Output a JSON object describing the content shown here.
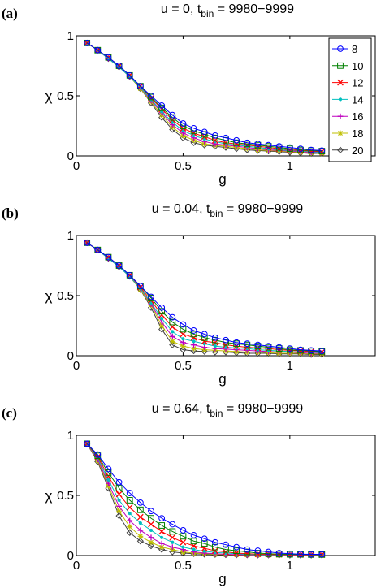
{
  "chart_data": [
    {
      "type": "line",
      "panel_label": "(a)",
      "title": {
        "main": "u = 0, t",
        "sub": "bin",
        "tail": " = 9980−9999"
      },
      "xlabel": "g",
      "ylabel": "χ",
      "xlim": [
        0,
        1.4
      ],
      "ylim": [
        0,
        1
      ],
      "xticks": [
        {
          "v": 0,
          "label": "0"
        },
        {
          "v": 0.5,
          "label": "0.5"
        },
        {
          "v": 1,
          "label": "1"
        }
      ],
      "yticks": [
        {
          "v": 0,
          "label": "0"
        },
        {
          "v": 0.5,
          "label": "0.5"
        },
        {
          "v": 1,
          "label": "1"
        }
      ],
      "grid": false,
      "legend": "top-right",
      "x": [
        0.05,
        0.1,
        0.15,
        0.2,
        0.25,
        0.3,
        0.35,
        0.4,
        0.45,
        0.5,
        0.55,
        0.6,
        0.65,
        0.7,
        0.75,
        0.8,
        0.85,
        0.9,
        0.95,
        1.0,
        1.05,
        1.1,
        1.15
      ],
      "series": [
        {
          "name": "8",
          "color": "#0000ff",
          "marker": "circle",
          "values": [
            0.94,
            0.88,
            0.82,
            0.75,
            0.67,
            0.58,
            0.5,
            0.42,
            0.34,
            0.27,
            0.23,
            0.2,
            0.17,
            0.15,
            0.13,
            0.11,
            0.1,
            0.09,
            0.08,
            0.07,
            0.06,
            0.05,
            0.045
          ]
        },
        {
          "name": "10",
          "color": "#008000",
          "marker": "square",
          "values": [
            0.94,
            0.88,
            0.82,
            0.75,
            0.67,
            0.58,
            0.49,
            0.4,
            0.32,
            0.25,
            0.21,
            0.18,
            0.15,
            0.13,
            0.11,
            0.1,
            0.09,
            0.08,
            0.07,
            0.06,
            0.05,
            0.045,
            0.04
          ]
        },
        {
          "name": "12",
          "color": "#ff0000",
          "marker": "x",
          "values": [
            0.94,
            0.88,
            0.82,
            0.75,
            0.67,
            0.58,
            0.48,
            0.39,
            0.3,
            0.23,
            0.19,
            0.16,
            0.13,
            0.11,
            0.1,
            0.09,
            0.08,
            0.07,
            0.06,
            0.05,
            0.045,
            0.04,
            0.035
          ]
        },
        {
          "name": "14",
          "color": "#00bfbf",
          "marker": "point",
          "values": [
            0.94,
            0.88,
            0.81,
            0.74,
            0.66,
            0.57,
            0.47,
            0.37,
            0.28,
            0.21,
            0.17,
            0.14,
            0.12,
            0.1,
            0.09,
            0.08,
            0.07,
            0.06,
            0.05,
            0.045,
            0.04,
            0.035,
            0.03
          ]
        },
        {
          "name": "16",
          "color": "#bf00bf",
          "marker": "plus",
          "values": [
            0.94,
            0.88,
            0.81,
            0.74,
            0.66,
            0.57,
            0.46,
            0.36,
            0.26,
            0.19,
            0.15,
            0.12,
            0.1,
            0.09,
            0.08,
            0.07,
            0.06,
            0.05,
            0.045,
            0.04,
            0.035,
            0.03,
            0.025
          ]
        },
        {
          "name": "18",
          "color": "#bfbf00",
          "marker": "star",
          "values": [
            0.94,
            0.88,
            0.81,
            0.74,
            0.66,
            0.56,
            0.45,
            0.34,
            0.24,
            0.17,
            0.13,
            0.1,
            0.09,
            0.08,
            0.07,
            0.06,
            0.05,
            0.045,
            0.04,
            0.035,
            0.03,
            0.025,
            0.02
          ]
        },
        {
          "name": "20",
          "color": "#404040",
          "marker": "diamond",
          "values": [
            0.94,
            0.88,
            0.81,
            0.74,
            0.66,
            0.56,
            0.44,
            0.32,
            0.22,
            0.15,
            0.11,
            0.09,
            0.08,
            0.07,
            0.06,
            0.05,
            0.045,
            0.04,
            0.035,
            0.03,
            0.025,
            0.02,
            0.02
          ]
        }
      ]
    },
    {
      "type": "line",
      "panel_label": "(b)",
      "title": {
        "main": "u = 0.04, t",
        "sub": "bin",
        "tail": " = 9980−9999"
      },
      "xlabel": "g",
      "ylabel": "χ",
      "xlim": [
        0,
        1.4
      ],
      "ylim": [
        0,
        1
      ],
      "xticks": [
        {
          "v": 0,
          "label": "0"
        },
        {
          "v": 0.5,
          "label": "0.5"
        },
        {
          "v": 1,
          "label": "1"
        }
      ],
      "yticks": [
        {
          "v": 0,
          "label": "0"
        },
        {
          "v": 0.5,
          "label": "0.5"
        },
        {
          "v": 1,
          "label": "1"
        }
      ],
      "grid": false,
      "x": [
        0.05,
        0.1,
        0.15,
        0.2,
        0.25,
        0.3,
        0.35,
        0.4,
        0.45,
        0.5,
        0.55,
        0.6,
        0.65,
        0.7,
        0.75,
        0.8,
        0.85,
        0.9,
        0.95,
        1.0,
        1.05,
        1.1,
        1.15
      ],
      "series": [
        {
          "name": "8",
          "color": "#0000ff",
          "marker": "circle",
          "values": [
            0.94,
            0.88,
            0.82,
            0.75,
            0.67,
            0.58,
            0.49,
            0.4,
            0.32,
            0.26,
            0.21,
            0.18,
            0.15,
            0.13,
            0.11,
            0.1,
            0.09,
            0.08,
            0.07,
            0.06,
            0.05,
            0.045,
            0.04
          ]
        },
        {
          "name": "10",
          "color": "#008000",
          "marker": "square",
          "values": [
            0.94,
            0.88,
            0.82,
            0.75,
            0.67,
            0.58,
            0.48,
            0.37,
            0.28,
            0.22,
            0.18,
            0.15,
            0.13,
            0.11,
            0.1,
            0.09,
            0.08,
            0.07,
            0.06,
            0.05,
            0.045,
            0.04,
            0.035
          ]
        },
        {
          "name": "12",
          "color": "#ff0000",
          "marker": "x",
          "values": [
            0.94,
            0.88,
            0.82,
            0.75,
            0.67,
            0.57,
            0.46,
            0.34,
            0.24,
            0.18,
            0.15,
            0.12,
            0.11,
            0.09,
            0.08,
            0.07,
            0.065,
            0.06,
            0.05,
            0.045,
            0.04,
            0.035,
            0.03
          ]
        },
        {
          "name": "14",
          "color": "#00bfbf",
          "marker": "point",
          "values": [
            0.94,
            0.88,
            0.81,
            0.74,
            0.66,
            0.56,
            0.44,
            0.31,
            0.2,
            0.14,
            0.12,
            0.1,
            0.08,
            0.07,
            0.065,
            0.06,
            0.05,
            0.045,
            0.04,
            0.035,
            0.03,
            0.03,
            0.025
          ]
        },
        {
          "name": "16",
          "color": "#bf00bf",
          "marker": "plus",
          "values": [
            0.94,
            0.88,
            0.81,
            0.74,
            0.66,
            0.56,
            0.43,
            0.28,
            0.16,
            0.11,
            0.09,
            0.07,
            0.06,
            0.055,
            0.05,
            0.045,
            0.04,
            0.035,
            0.03,
            0.03,
            0.025,
            0.02,
            0.02
          ]
        },
        {
          "name": "18",
          "color": "#bfbf00",
          "marker": "star",
          "values": [
            0.94,
            0.88,
            0.81,
            0.74,
            0.66,
            0.55,
            0.42,
            0.25,
            0.12,
            0.08,
            0.06,
            0.05,
            0.045,
            0.04,
            0.035,
            0.03,
            0.03,
            0.025,
            0.02,
            0.02,
            0.02,
            0.015,
            0.015
          ]
        },
        {
          "name": "20",
          "color": "#404040",
          "marker": "diamond",
          "values": [
            0.94,
            0.88,
            0.81,
            0.74,
            0.66,
            0.55,
            0.4,
            0.22,
            0.09,
            0.05,
            0.04,
            0.035,
            0.03,
            0.03,
            0.025,
            0.02,
            0.02,
            0.02,
            0.015,
            0.015,
            0.015,
            0.01,
            0.01
          ]
        }
      ]
    },
    {
      "type": "line",
      "panel_label": "(c)",
      "title": {
        "main": "u = 0.64, t",
        "sub": "bin",
        "tail": " = 9980−9999"
      },
      "xlabel": "g",
      "ylabel": "χ",
      "xlim": [
        0,
        1.4
      ],
      "ylim": [
        0,
        1
      ],
      "xticks": [
        {
          "v": 0,
          "label": "0"
        },
        {
          "v": 0.5,
          "label": "0.5"
        },
        {
          "v": 1,
          "label": "1"
        }
      ],
      "yticks": [
        {
          "v": 0,
          "label": "0"
        },
        {
          "v": 0.5,
          "label": "0.5"
        },
        {
          "v": 1,
          "label": "1"
        }
      ],
      "grid": false,
      "x": [
        0.05,
        0.1,
        0.15,
        0.2,
        0.25,
        0.3,
        0.35,
        0.4,
        0.45,
        0.5,
        0.55,
        0.6,
        0.65,
        0.7,
        0.75,
        0.8,
        0.85,
        0.9,
        0.95,
        1.0,
        1.05,
        1.1,
        1.15
      ],
      "series": [
        {
          "name": "8",
          "color": "#0000ff",
          "marker": "circle",
          "values": [
            0.93,
            0.84,
            0.72,
            0.61,
            0.52,
            0.44,
            0.37,
            0.31,
            0.26,
            0.21,
            0.17,
            0.14,
            0.11,
            0.09,
            0.07,
            0.05,
            0.04,
            0.03,
            0.02,
            0.015,
            0.012,
            0.01,
            0.01
          ]
        },
        {
          "name": "10",
          "color": "#008000",
          "marker": "square",
          "values": [
            0.93,
            0.83,
            0.69,
            0.56,
            0.46,
            0.38,
            0.31,
            0.25,
            0.2,
            0.16,
            0.12,
            0.1,
            0.07,
            0.05,
            0.04,
            0.03,
            0.02,
            0.015,
            0.012,
            0.01,
            0.01,
            0.008,
            0.008
          ]
        },
        {
          "name": "12",
          "color": "#ff0000",
          "marker": "x",
          "values": [
            0.93,
            0.82,
            0.66,
            0.51,
            0.4,
            0.32,
            0.26,
            0.2,
            0.15,
            0.11,
            0.08,
            0.06,
            0.04,
            0.03,
            0.02,
            0.015,
            0.012,
            0.01,
            0.008,
            0.008,
            0.006,
            0.006,
            0.006
          ]
        },
        {
          "name": "14",
          "color": "#00bfbf",
          "marker": "point",
          "values": [
            0.93,
            0.81,
            0.63,
            0.46,
            0.35,
            0.27,
            0.21,
            0.15,
            0.11,
            0.07,
            0.05,
            0.035,
            0.025,
            0.02,
            0.015,
            0.01,
            0.008,
            0.008,
            0.006,
            0.006,
            0.005,
            0.005,
            0.005
          ]
        },
        {
          "name": "16",
          "color": "#bf00bf",
          "marker": "plus",
          "values": [
            0.93,
            0.8,
            0.6,
            0.41,
            0.29,
            0.21,
            0.15,
            0.1,
            0.07,
            0.05,
            0.03,
            0.02,
            0.015,
            0.01,
            0.008,
            0.006,
            0.005,
            0.005,
            0.004,
            0.004,
            0.004,
            0.004,
            0.004
          ]
        },
        {
          "name": "18",
          "color": "#bfbf00",
          "marker": "star",
          "values": [
            0.93,
            0.79,
            0.58,
            0.37,
            0.24,
            0.16,
            0.11,
            0.07,
            0.05,
            0.03,
            0.02,
            0.015,
            0.01,
            0.008,
            0.006,
            0.005,
            0.004,
            0.004,
            0.003,
            0.003,
            0.003,
            0.003,
            0.003
          ]
        },
        {
          "name": "20",
          "color": "#404040",
          "marker": "diamond",
          "values": [
            0.93,
            0.78,
            0.56,
            0.33,
            0.19,
            0.12,
            0.08,
            0.05,
            0.03,
            0.02,
            0.015,
            0.01,
            0.008,
            0.006,
            0.005,
            0.004,
            0.003,
            0.003,
            0.003,
            0.002,
            0.002,
            0.002,
            0.002
          ]
        }
      ]
    }
  ]
}
